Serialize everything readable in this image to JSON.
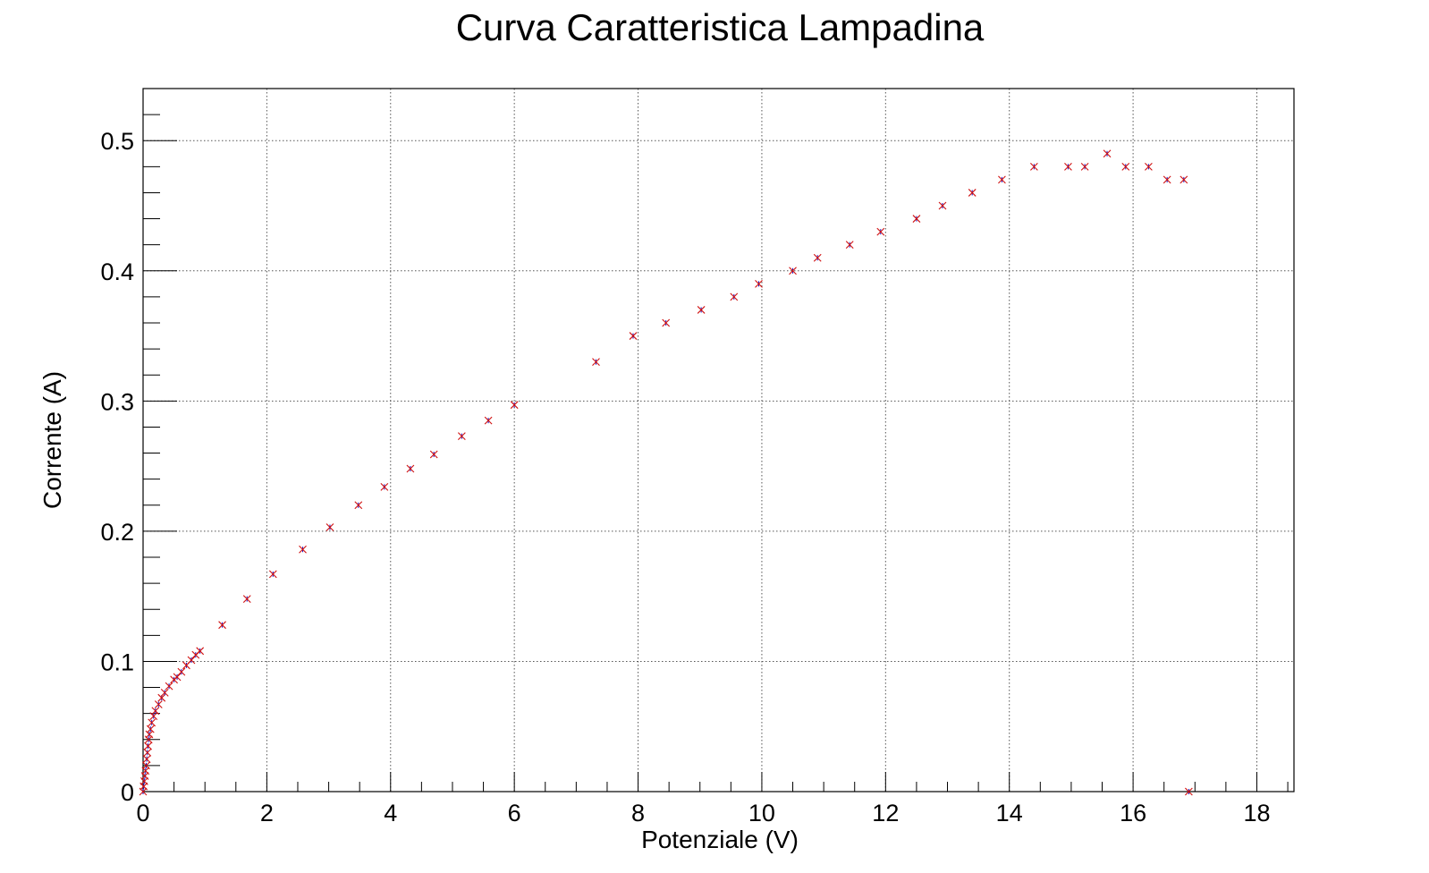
{
  "chart_data": {
    "type": "scatter",
    "title": "Curva Caratteristica Lampadina",
    "xlabel": "Potenziale (V)",
    "ylabel": "Corrente (A)",
    "xlim": [
      0,
      18.6
    ],
    "ylim": [
      0,
      0.54
    ],
    "x_ticks": [
      0,
      2,
      4,
      6,
      8,
      10,
      12,
      14,
      16,
      18
    ],
    "x_tick_labels": [
      "0",
      "2",
      "4",
      "6",
      "8",
      "10",
      "12",
      "14",
      "16",
      "18"
    ],
    "y_ticks": [
      0,
      0.1,
      0.2,
      0.3,
      0.4,
      0.5
    ],
    "y_tick_labels": [
      "0",
      "0.1",
      "0.2",
      "0.3",
      "0.4",
      "0.5"
    ],
    "grid": true,
    "marker": "x",
    "colors": {
      "marker": "#d01010",
      "error_bar": "#1010c8",
      "grid": "#555555",
      "frame": "#000000"
    },
    "series": [
      {
        "x": [
          0.0,
          0.01,
          0.02,
          0.03,
          0.04,
          0.05,
          0.06,
          0.07,
          0.08,
          0.09,
          0.1,
          0.12,
          0.14,
          0.17,
          0.2,
          0.25,
          0.3,
          0.35,
          0.42,
          0.5,
          0.55,
          0.62,
          0.7,
          0.78,
          0.85,
          0.92,
          1.28,
          1.68,
          2.1,
          2.58,
          3.02,
          3.48,
          3.9,
          4.32,
          4.7,
          5.15,
          5.58,
          6.0,
          7.32,
          7.92,
          8.45,
          9.02,
          9.55,
          9.95,
          10.5,
          10.9,
          11.42,
          11.92,
          12.5,
          12.92,
          13.4,
          13.88,
          14.4,
          14.95,
          15.22,
          15.58,
          15.88,
          16.25,
          16.55,
          16.82,
          16.9
        ],
        "y": [
          0.0,
          0.004,
          0.008,
          0.012,
          0.016,
          0.02,
          0.025,
          0.03,
          0.035,
          0.04,
          0.044,
          0.048,
          0.053,
          0.058,
          0.062,
          0.067,
          0.072,
          0.076,
          0.081,
          0.086,
          0.088,
          0.092,
          0.097,
          0.101,
          0.105,
          0.108,
          0.128,
          0.148,
          0.167,
          0.186,
          0.203,
          0.22,
          0.234,
          0.248,
          0.259,
          0.273,
          0.285,
          0.297,
          0.33,
          0.35,
          0.36,
          0.37,
          0.38,
          0.39,
          0.4,
          0.41,
          0.42,
          0.43,
          0.44,
          0.45,
          0.46,
          0.47,
          0.48,
          0.48,
          0.48,
          0.49,
          0.48,
          0.48,
          0.47,
          0.47,
          0.0
        ]
      }
    ]
  }
}
